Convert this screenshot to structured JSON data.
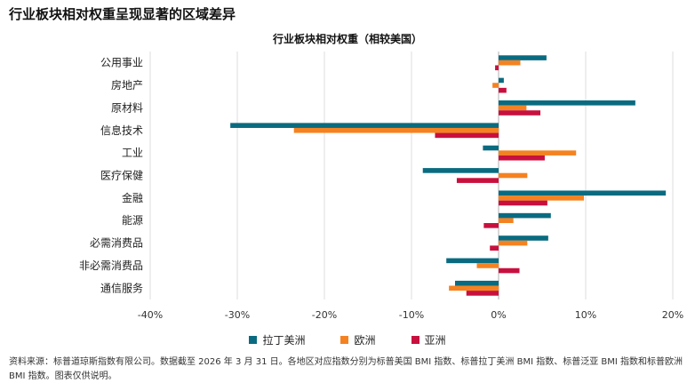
{
  "page_title": "行业板块相对权重呈现显著的区域差异",
  "colors": {
    "latin_america": "#0a6b80",
    "europe": "#f58220",
    "asia": "#c8103e",
    "grid": "#dcdcdc",
    "zero_line": "#b0b0b0"
  },
  "chart_data": {
    "type": "bar",
    "orientation": "horizontal",
    "title": "行业板块相对权重（相较美国）",
    "categories": [
      "公用事业",
      "房地产",
      "原材料",
      "信息技术",
      "工业",
      "医疗保健",
      "金融",
      "能源",
      "必需消费品",
      "非必需消费品",
      "通信服务"
    ],
    "series": [
      {
        "name": "拉丁美洲",
        "values": [
          5.5,
          0.6,
          15.7,
          -30.8,
          -1.8,
          -8.7,
          19.2,
          6.0,
          5.7,
          -6.0,
          -5.0
        ]
      },
      {
        "name": "欧洲",
        "values": [
          2.5,
          -0.7,
          3.2,
          -23.5,
          8.9,
          3.3,
          9.8,
          1.7,
          3.3,
          -2.5,
          -5.7
        ]
      },
      {
        "name": "亚洲",
        "values": [
          -0.4,
          0.9,
          4.8,
          -7.3,
          5.3,
          -4.8,
          5.6,
          -1.7,
          -1.0,
          2.4,
          -3.7
        ]
      }
    ],
    "xlim": [
      -40,
      20
    ],
    "ticks": [
      -40,
      -30,
      -20,
      -10,
      0,
      10,
      20
    ],
    "tick_labels": [
      "-40%",
      "-30%",
      "-20%",
      "-10%",
      "0%",
      "10%",
      "20%"
    ],
    "grid": true,
    "legend": "bottom"
  },
  "source_note": "资料来源：标普道琼斯指数有限公司。数据截至 2026 年 3 月 31 日。各地区对应指数分别为标普美国 BMI 指数、标普拉丁美洲 BMI 指数、标普泛亚 BMI 指数和标普欧洲 BMI 指数。图表仅供说明。"
}
